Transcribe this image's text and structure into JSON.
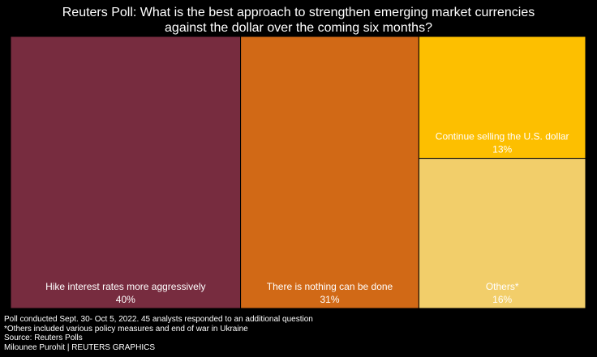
{
  "title_lines": [
    "Reuters Poll: What is the best approach to strengthen emerging market currencies",
    "against the dollar over the coming six months?"
  ],
  "chart_data": {
    "type": "treemap",
    "unit": "%",
    "items": [
      {
        "label": "Hike interest rates more aggressively",
        "value": 40,
        "value_label": "40%",
        "color": "#772c3f"
      },
      {
        "label": "There is nothing can be done",
        "value": 31,
        "value_label": "31%",
        "color": "#d16916"
      },
      {
        "label": "Continue selling the U.S. dollar",
        "value": 13,
        "value_label": "13%",
        "color": "#fdbf00"
      },
      {
        "label": "Others*",
        "value": 16,
        "value_label": "16%",
        "color": "#f2ce6a"
      }
    ]
  },
  "footer": {
    "note": "Poll conducted Sept. 30- Oct 5, 2022. 45 analysts responded to an additional question",
    "footnote": "*Others included various policy measures and end of war in Ukraine",
    "source": "Source: Reuters Polls",
    "credit": "Milounee Purohit | REUTERS GRAPHICS"
  }
}
